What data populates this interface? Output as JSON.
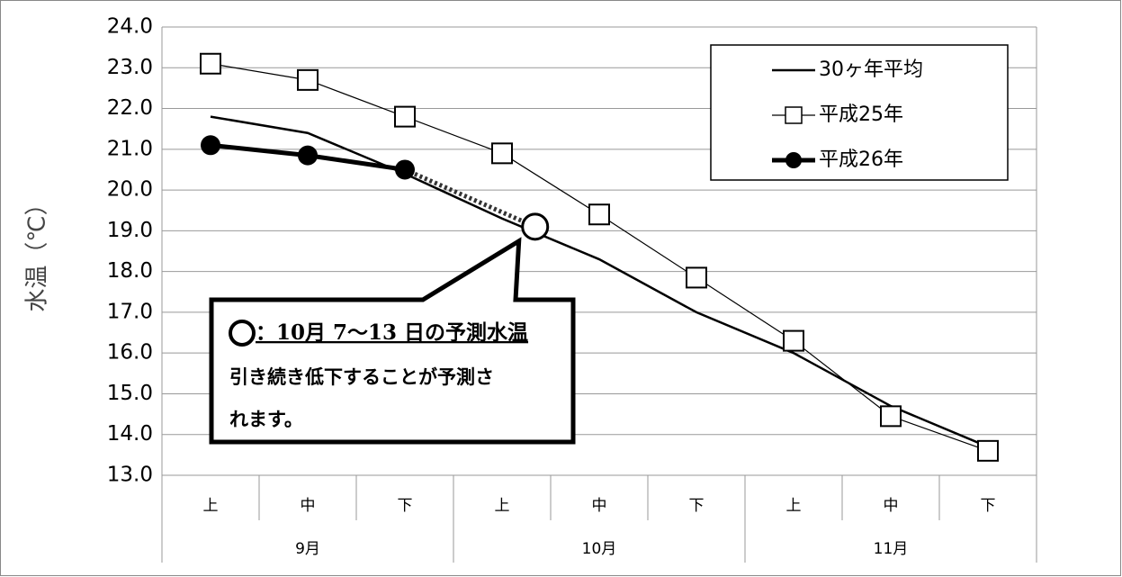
{
  "chart_data": {
    "type": "line",
    "ylabel": "水温（℃）",
    "categories": [
      "上",
      "中",
      "下",
      "上",
      "中",
      "下",
      "上",
      "中",
      "下"
    ],
    "groups": [
      "9月",
      "10月",
      "11月"
    ],
    "ylim": [
      13,
      24
    ],
    "yticks": [
      {
        "value": 13,
        "label": "13.0"
      },
      {
        "value": 14,
        "label": "14.0"
      },
      {
        "value": 15,
        "label": "15.0"
      },
      {
        "value": 16,
        "label": "16.0"
      },
      {
        "value": 17,
        "label": "17.0"
      },
      {
        "value": 18,
        "label": "18.0"
      },
      {
        "value": 19,
        "label": "19.0"
      },
      {
        "value": 20,
        "label": "20.0"
      },
      {
        "value": 21,
        "label": "21.0"
      },
      {
        "value": 22,
        "label": "22.0"
      },
      {
        "value": 23,
        "label": "23.0"
      },
      {
        "value": 24,
        "label": "24.0"
      }
    ],
    "grid": true,
    "legend": "upper right",
    "series": [
      {
        "name": "30ヶ年平均",
        "color": "#000000",
        "marker": "none",
        "values": [
          21.8,
          21.4,
          20.4,
          19.3,
          18.3,
          17.0,
          16.0,
          14.7,
          13.7
        ]
      },
      {
        "name": "平成25年",
        "color": "#000000",
        "marker": "square",
        "values": [
          23.1,
          22.7,
          21.8,
          20.9,
          19.4,
          17.85,
          16.3,
          14.45,
          13.6
        ]
      },
      {
        "name": "平成26年",
        "color": "#000000",
        "marker": "circle",
        "values": [
          21.1,
          20.85,
          20.5,
          null,
          null,
          null,
          null,
          null,
          null
        ]
      }
    ],
    "prediction": {
      "value": 19.1,
      "x_index": 3.34,
      "text": [
        "：10月 7～13 日の予測水温",
        "引き続き低下することが予測さ",
        "れます。"
      ]
    }
  }
}
